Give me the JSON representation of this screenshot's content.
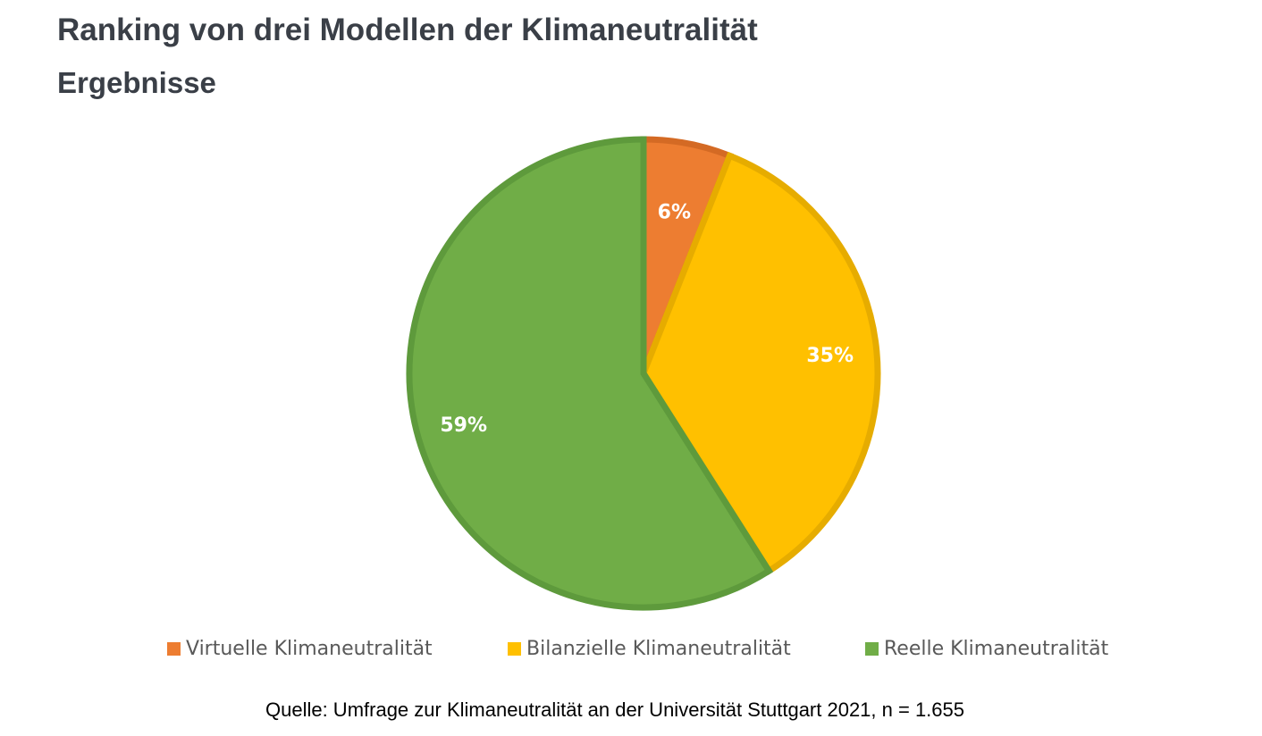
{
  "chart_data": {
    "type": "pie",
    "title": "Ranking von drei Modellen der Klimaneutralität",
    "subtitle": "Ergebnisse",
    "categories": [
      "Virtuelle Klimaneutralität",
      "Bilanzielle Klimaneutralität",
      "Reelle Klimaneutralität"
    ],
    "values": [
      6,
      35,
      59
    ],
    "labels": [
      "6%",
      "35%",
      "59%"
    ],
    "colors": [
      "#ED7D31",
      "#FFC000",
      "#70AD47"
    ],
    "border_colors": [
      "#D46A24",
      "#E6AC00",
      "#5E9A3C"
    ],
    "legend_position": "bottom",
    "source": "Quelle: Umfrage zur Klimaneutralität an der Universität Stuttgart 2021, n = 1.655"
  }
}
